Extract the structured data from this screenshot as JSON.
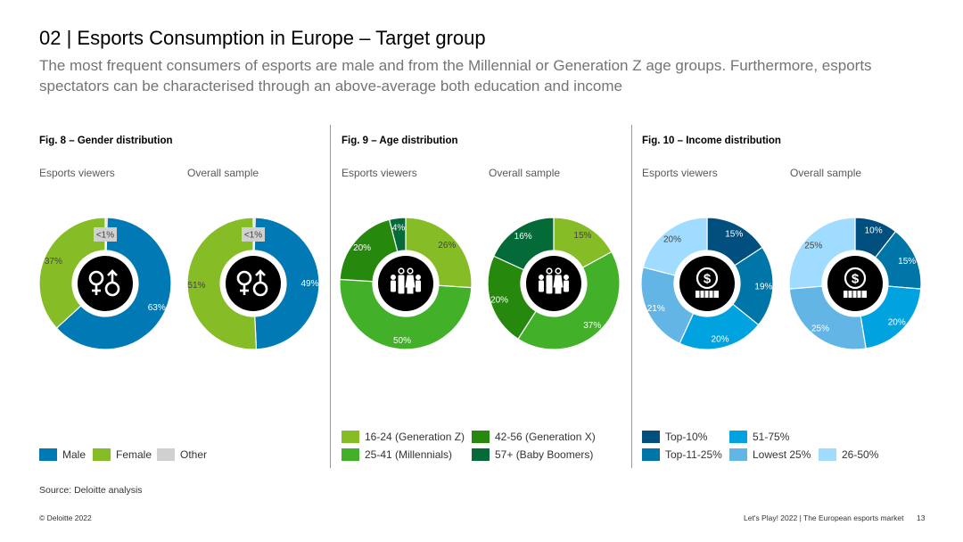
{
  "header": {
    "title": "02 | Esports Consumption in Europe – Target group",
    "subtitle": "The most frequent consumers of esports are male and from the Millennial or Generation Z age groups. Furthermore, esports spectators can be characterised through an above-average both education and income"
  },
  "colors": {
    "male": "#0079B4",
    "female": "#86BC25",
    "other": "#D0D0D0",
    "gen_z": "#86BC25",
    "millennials": "#43B02A",
    "gen_x": "#26890D",
    "boomers": "#046A38",
    "top10": "#004F7F",
    "top11_25": "#0076A8",
    "r51_75": "#00A3E0",
    "lowest25": "#62B5E5",
    "r26_50": "#A0DCFF"
  },
  "figures": {
    "gender": {
      "title": "Fig. 8 – Gender distribution",
      "left_label": "Esports viewers",
      "right_label": "Overall sample",
      "icon": "gender-symbols-icon"
    },
    "age": {
      "title": "Fig. 9 – Age distribution",
      "left_label": "Esports viewers",
      "right_label": "Overall sample",
      "icon": "family-generations-icon"
    },
    "income": {
      "title": "Fig. 10 – Income distribution",
      "left_label": "Esports viewers",
      "right_label": "Overall sample",
      "icon": "money-coin-icon"
    }
  },
  "chart_data": [
    {
      "type": "pie",
      "id": "gender-esports",
      "series": [
        {
          "name": "Other",
          "value": 0.5,
          "label": "<1%",
          "color": "#D0D0D0"
        },
        {
          "name": "Male",
          "value": 63,
          "label": "63%",
          "color": "#0079B4"
        },
        {
          "name": "Female",
          "value": 37,
          "label": "37%",
          "color": "#86BC25"
        }
      ]
    },
    {
      "type": "pie",
      "id": "gender-overall",
      "series": [
        {
          "name": "Other",
          "value": 0.5,
          "label": "<1%",
          "color": "#D0D0D0"
        },
        {
          "name": "Male",
          "value": 49,
          "label": "49%",
          "color": "#0079B4"
        },
        {
          "name": "Female",
          "value": 51,
          "label": "51%",
          "color": "#86BC25"
        }
      ]
    },
    {
      "type": "pie",
      "id": "age-esports",
      "series": [
        {
          "name": "16-24 (Generation Z)",
          "value": 26,
          "label": "26%",
          "color": "#86BC25"
        },
        {
          "name": "25-41 (Millennials)",
          "value": 50,
          "label": "50%",
          "color": "#43B02A"
        },
        {
          "name": "42-56 (Generation X)",
          "value": 20,
          "label": "20%",
          "color": "#26890D"
        },
        {
          "name": "57+ (Baby Boomers)",
          "value": 4,
          "label": "4%",
          "color": "#046A38"
        }
      ]
    },
    {
      "type": "pie",
      "id": "age-overall",
      "series": [
        {
          "name": "16-24 (Generation Z)",
          "value": 15,
          "label": "15%",
          "color": "#86BC25"
        },
        {
          "name": "25-41 (Millennials)",
          "value": 37,
          "label": "37%",
          "color": "#43B02A"
        },
        {
          "name": "42-56 (Generation X)",
          "value": 20,
          "label": "20%",
          "color": "#26890D"
        },
        {
          "name": "57+ (Baby Boomers)",
          "value": 16,
          "label": "16%",
          "color": "#046A38"
        }
      ]
    },
    {
      "type": "pie",
      "id": "income-esports",
      "series": [
        {
          "name": "Top-10%",
          "value": 15,
          "label": "15%",
          "color": "#004F7F"
        },
        {
          "name": "Top-11-25%",
          "value": 19,
          "label": "19%",
          "color": "#0076A8"
        },
        {
          "name": "51-75%",
          "value": 20,
          "label": "20%",
          "color": "#00A3E0"
        },
        {
          "name": "Lowest 25%",
          "value": 21,
          "label": "21%",
          "color": "#62B5E5"
        },
        {
          "name": "26-50%",
          "value": 20,
          "label": "20%",
          "color": "#A0DCFF"
        }
      ]
    },
    {
      "type": "pie",
      "id": "income-overall",
      "series": [
        {
          "name": "Top-10%",
          "value": 10,
          "label": "10%",
          "color": "#004F7F"
        },
        {
          "name": "Top-11-25%",
          "value": 15,
          "label": "15%",
          "color": "#0076A8"
        },
        {
          "name": "51-75%",
          "value": 20,
          "label": "20%",
          "color": "#00A3E0"
        },
        {
          "name": "Lowest 25%",
          "value": 25,
          "label": "25%",
          "color": "#62B5E5"
        },
        {
          "name": "26-50%",
          "value": 25,
          "label": "25%",
          "color": "#A0DCFF"
        }
      ]
    }
  ],
  "legends": {
    "gender": [
      "Male",
      "Female",
      "Other"
    ],
    "age": [
      "16-24 (Generation Z)",
      "42-56 (Generation X)",
      "25-41 (Millennials)",
      "57+ (Baby Boomers)"
    ],
    "income": [
      "Top-10%",
      "51-75%",
      "Top-11-25%",
      "Lowest 25%",
      "26-50%"
    ]
  },
  "source": "Source: Deloitte analysis",
  "footer": {
    "copyright": "© Deloitte 2022",
    "report": "Let's Play! 2022 | The European esports market",
    "page": "13"
  }
}
